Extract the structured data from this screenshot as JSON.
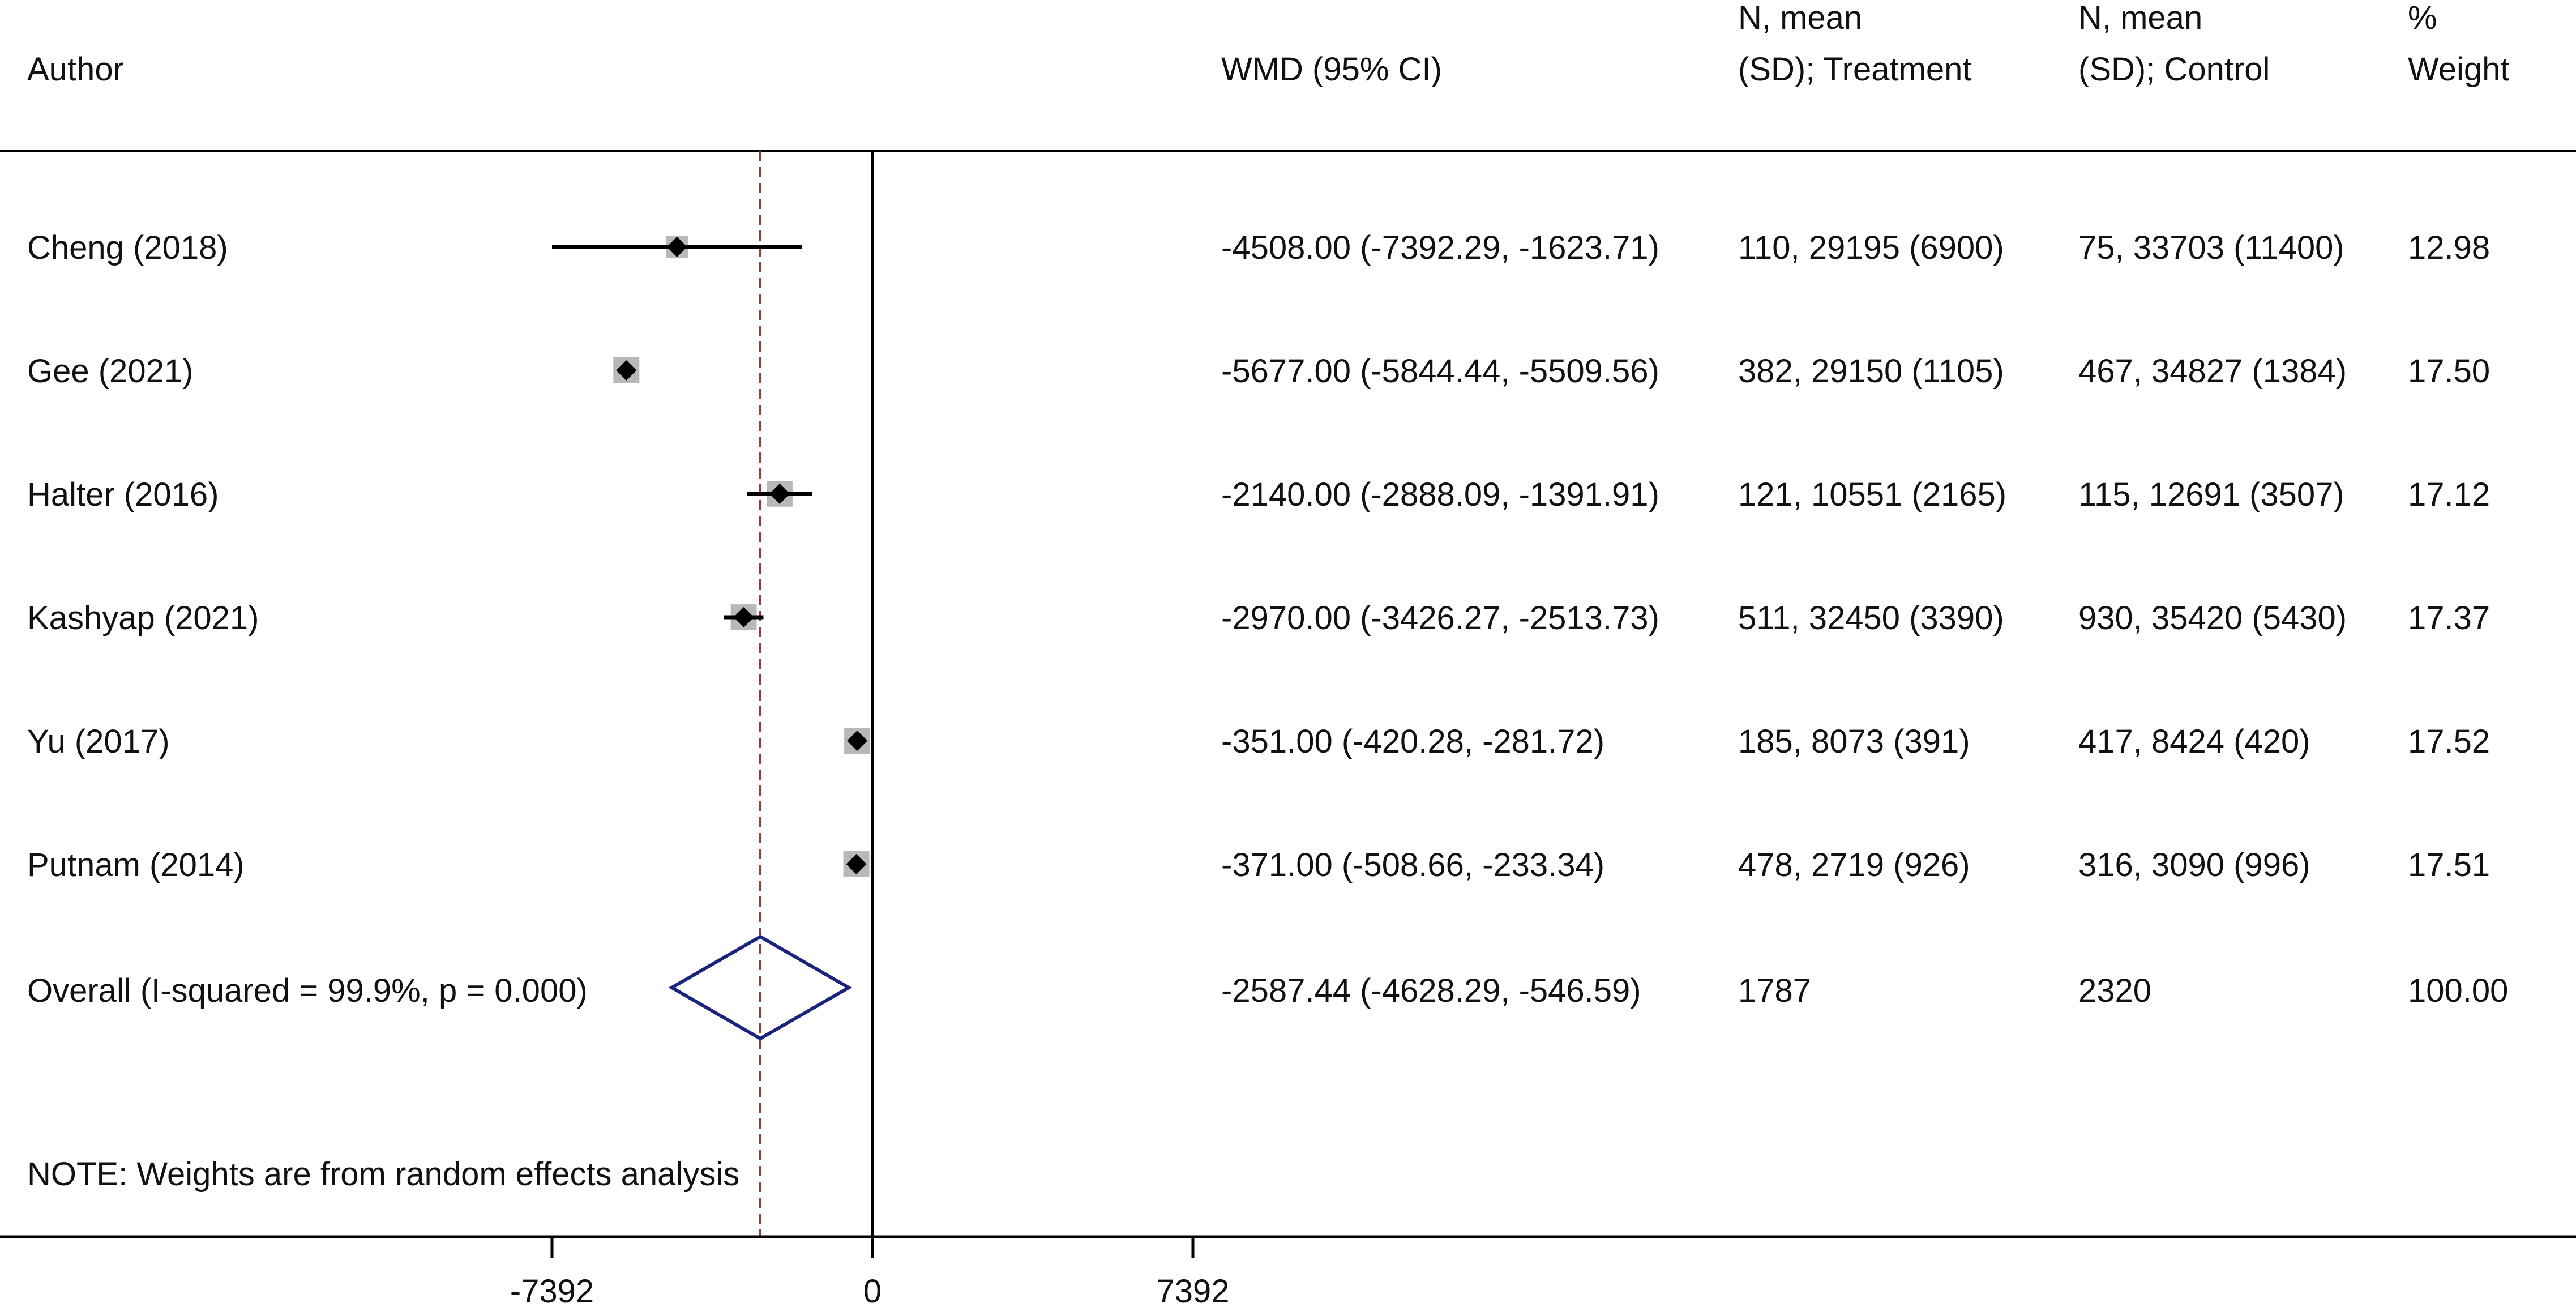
{
  "headers": {
    "author": "Author",
    "wmd": "WMD (95% CI)",
    "treatment_line1": "N, mean",
    "treatment_line2": "(SD); Treatment",
    "control_line1": "N, mean",
    "control_line2": "(SD); Control",
    "weight_line1": "%",
    "weight_line2": "Weight"
  },
  "note": "NOTE: Weights are from random effects analysis",
  "chart_data": {
    "type": "forest",
    "xlim": [
      -7392,
      7392
    ],
    "xticks": [
      -7392,
      0,
      7392
    ],
    "xtick_labels": [
      "-7392",
      "0",
      "7392"
    ],
    "null_line": 0,
    "overall_line": -2587.44,
    "studies": [
      {
        "author": "Cheng (2018)",
        "wmd": -4508.0,
        "lo": -7392.29,
        "hi": -1623.71,
        "ci_text": "-4508.00 (-7392.29, -1623.71)",
        "treatment": "110, 29195 (6900)",
        "control": "75, 33703 (11400)",
        "weight": 12.98,
        "weight_text": "12.98"
      },
      {
        "author": "Gee (2021)",
        "wmd": -5677.0,
        "lo": -5844.44,
        "hi": -5509.56,
        "ci_text": "-5677.00 (-5844.44, -5509.56)",
        "treatment": "382, 29150 (1105)",
        "control": "467, 34827 (1384)",
        "weight": 17.5,
        "weight_text": "17.50"
      },
      {
        "author": "Halter (2016)",
        "wmd": -2140.0,
        "lo": -2888.09,
        "hi": -1391.91,
        "ci_text": "-2140.00 (-2888.09, -1391.91)",
        "treatment": "121, 10551 (2165)",
        "control": "115, 12691 (3507)",
        "weight": 17.12,
        "weight_text": "17.12"
      },
      {
        "author": "Kashyap (2021)",
        "wmd": -2970.0,
        "lo": -3426.27,
        "hi": -2513.73,
        "ci_text": "-2970.00 (-3426.27, -2513.73)",
        "treatment": "511, 32450 (3390)",
        "control": "930, 35420 (5430)",
        "weight": 17.37,
        "weight_text": "17.37"
      },
      {
        "author": "Yu (2017)",
        "wmd": -351.0,
        "lo": -420.28,
        "hi": -281.72,
        "ci_text": "-351.00 (-420.28, -281.72)",
        "treatment": "185, 8073 (391)",
        "control": "417, 8424 (420)",
        "weight": 17.52,
        "weight_text": "17.52"
      },
      {
        "author": "Putnam (2014)",
        "wmd": -371.0,
        "lo": -508.66,
        "hi": -233.34,
        "ci_text": "-371.00 (-508.66, -233.34)",
        "treatment": "478, 2719 (926)",
        "control": "316, 3090 (996)",
        "weight": 17.51,
        "weight_text": "17.51"
      }
    ],
    "overall": {
      "label": "Overall  (I-squared = 99.9%, p = 0.000)",
      "wmd": -2587.44,
      "lo": -4628.29,
      "hi": -546.59,
      "ci_text": "-2587.44 (-4628.29, -546.59)",
      "treatment": "1787",
      "control": "2320",
      "weight_text": "100.00"
    },
    "colors": {
      "marker": "#000000",
      "weight_box": "#b8b8b8",
      "overall_diamond": "#1a237e",
      "overall_line": "#9b3a3a",
      "axis": "#000000"
    }
  }
}
